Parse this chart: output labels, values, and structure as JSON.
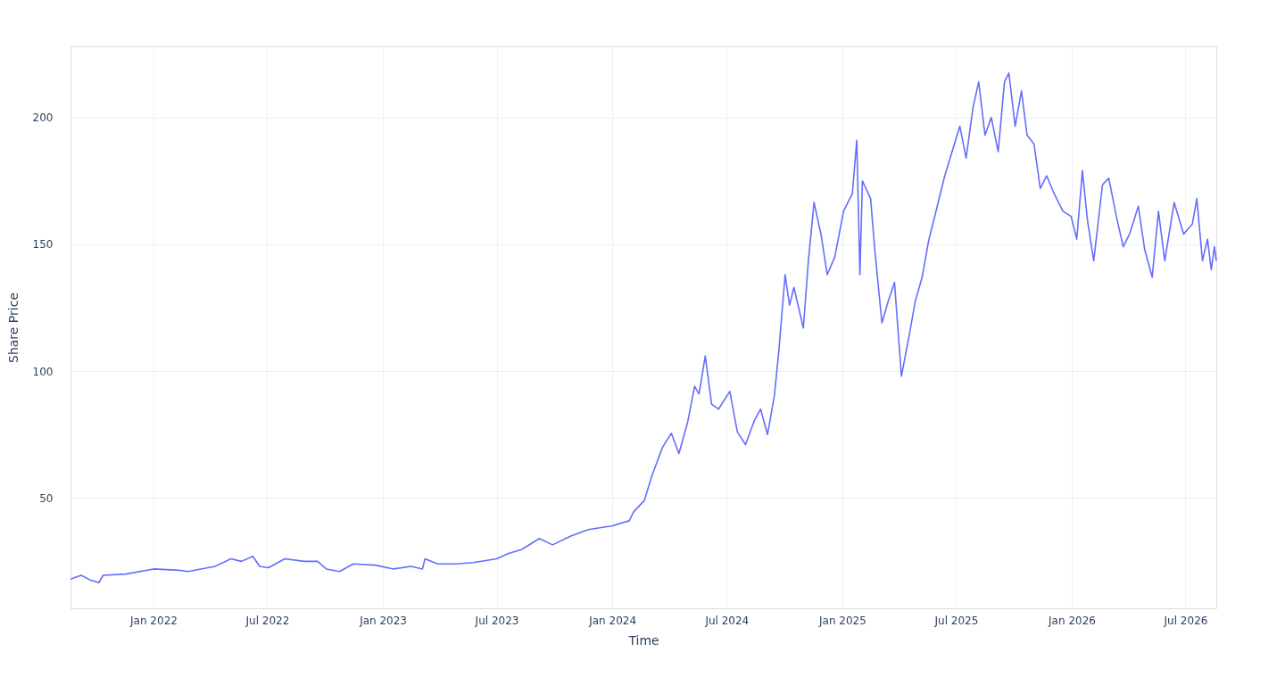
{
  "chart_data": {
    "type": "line",
    "xlabel": "Time",
    "ylabel": "Share Price",
    "grid": true,
    "line_style": "solid",
    "marker": "none",
    "xlim": [
      "2021-08-22",
      "2026-08-19"
    ],
    "xticks": [
      {
        "value": "2022-01-01",
        "label": "Jan 2022"
      },
      {
        "value": "2022-07-01",
        "label": "Jul 2022"
      },
      {
        "value": "2023-01-01",
        "label": "Jan 2023"
      },
      {
        "value": "2023-07-01",
        "label": "Jul 2023"
      },
      {
        "value": "2024-01-01",
        "label": "Jan 2024"
      },
      {
        "value": "2024-07-01",
        "label": "Jul 2024"
      },
      {
        "value": "2025-01-01",
        "label": "Jan 2025"
      },
      {
        "value": "2025-07-01",
        "label": "Jul 2025"
      },
      {
        "value": "2026-01-01",
        "label": "Jan 2026"
      },
      {
        "value": "2026-07-01",
        "label": "Jul 2026"
      }
    ],
    "ylim": [
      6.5,
      228
    ],
    "yticks": [
      50,
      100,
      150,
      200
    ],
    "x": [
      "2021-08-22",
      "2021-09-08",
      "2021-09-22",
      "2021-10-06",
      "2021-10-13",
      "2021-11-18",
      "2022-01-01",
      "2022-02-11",
      "2022-02-25",
      "2022-04-09",
      "2022-05-04",
      "2022-05-21",
      "2022-06-08",
      "2022-06-19",
      "2022-07-03",
      "2022-07-29",
      "2022-08-29",
      "2022-09-19",
      "2022-10-03",
      "2022-10-24",
      "2022-11-15",
      "2022-12-20",
      "2023-01-18",
      "2023-02-15",
      "2023-03-05",
      "2023-03-09",
      "2023-03-29",
      "2023-04-27",
      "2023-05-25",
      "2023-07-01",
      "2023-07-19",
      "2023-08-10",
      "2023-09-07",
      "2023-09-28",
      "2023-10-27",
      "2023-11-24",
      "2024-01-01",
      "2024-01-28",
      "2024-02-04",
      "2024-02-21",
      "2024-03-04",
      "2024-03-21",
      "2024-04-04",
      "2024-04-16",
      "2024-04-30",
      "2024-05-11",
      "2024-05-18",
      "2024-05-28",
      "2024-06-07",
      "2024-06-18",
      "2024-07-06",
      "2024-07-18",
      "2024-07-31",
      "2024-08-14",
      "2024-08-24",
      "2024-09-04",
      "2024-09-15",
      "2024-09-22",
      "2024-10-02",
      "2024-10-09",
      "2024-10-16",
      "2024-10-31",
      "2024-11-08",
      "2024-11-17",
      "2024-11-28",
      "2024-12-08",
      "2024-12-20",
      "2025-01-03",
      "2025-01-17",
      "2025-01-24",
      "2025-01-29",
      "2025-02-02",
      "2025-02-15",
      "2025-02-22",
      "2025-03-05",
      "2025-03-15",
      "2025-03-25",
      "2025-04-05",
      "2025-04-17",
      "2025-04-27",
      "2025-05-08",
      "2025-05-18",
      "2025-06-01",
      "2025-06-13",
      "2025-06-24",
      "2025-07-07",
      "2025-07-17",
      "2025-07-28",
      "2025-08-06",
      "2025-08-16",
      "2025-08-26",
      "2025-09-06",
      "2025-09-16",
      "2025-09-23",
      "2025-10-03",
      "2025-10-13",
      "2025-10-22",
      "2025-11-02",
      "2025-11-12",
      "2025-11-22",
      "2025-12-04",
      "2025-12-18",
      "2025-12-31",
      "2026-01-09",
      "2026-01-18",
      "2026-01-26",
      "2026-02-05",
      "2026-02-19",
      "2026-03-01",
      "2026-03-13",
      "2026-03-24",
      "2026-04-03",
      "2026-04-17",
      "2026-04-27",
      "2026-05-09",
      "2026-05-19",
      "2026-05-29",
      "2026-06-13",
      "2026-06-28",
      "2026-07-12",
      "2026-07-19",
      "2026-07-28",
      "2026-08-05",
      "2026-08-11",
      "2026-08-16",
      "2026-08-19"
    ],
    "series": [
      {
        "color": "#636efa",
        "values": [
          18,
          19.5,
          17.7,
          16.6,
          19.5,
          20,
          22,
          21.5,
          21,
          23,
          26,
          25,
          27,
          23,
          22.5,
          26,
          25,
          25,
          22,
          21,
          24,
          23.5,
          22,
          23,
          22,
          26,
          24,
          24,
          24.5,
          26,
          28,
          29.7,
          34,
          31.5,
          35,
          37.5,
          39,
          41,
          44.5,
          49,
          58.7,
          70,
          75.5,
          67.5,
          80,
          94,
          91,
          106,
          87,
          85,
          92,
          76,
          71,
          80.5,
          85,
          75,
          90.5,
          108,
          138,
          126,
          133,
          117,
          143.5,
          166.5,
          154,
          138,
          145,
          163,
          170,
          191,
          138,
          175,
          168,
          147,
          119,
          127.5,
          135,
          98,
          113.5,
          127.5,
          137,
          151,
          165,
          177,
          186,
          196.5,
          184,
          204,
          214,
          193,
          200,
          186.5,
          214,
          217.5,
          196.5,
          210.5,
          193,
          189.5,
          172,
          177,
          170,
          163,
          161,
          152,
          179,
          159.5,
          143.5,
          173.5,
          176,
          161,
          149,
          154,
          165,
          148,
          137,
          163,
          143.5,
          166.5,
          154,
          158,
          168,
          143.5,
          152,
          140,
          149,
          143.5
        ]
      }
    ]
  }
}
